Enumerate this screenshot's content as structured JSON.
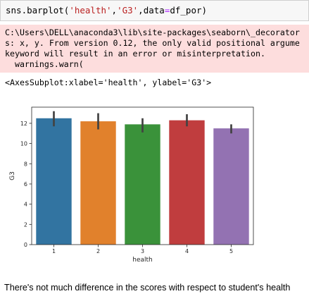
{
  "code_cell": {
    "parts": {
      "fn": "sns.barplot(",
      "arg1": "'health'",
      "sep1": ",",
      "arg2": "'G3'",
      "sep2": ",",
      "kw": "data",
      "eq": "=",
      "val": "df_por)"
    }
  },
  "stderr": {
    "lines": [
      "C:\\Users\\DELL\\anaconda3\\lib\\site-packages\\seaborn\\_decorator",
      "s: x, y. From version 0.12, the only valid positional argume",
      "keyword will result in an error or misinterpretation.",
      "  warnings.warn("
    ],
    "color": "#fddddd"
  },
  "output_repr": "<AxesSubplot:xlabel='health', ylabel='G3'>",
  "chart_data": {
    "type": "bar",
    "categories": [
      "1",
      "2",
      "3",
      "4",
      "5"
    ],
    "values": [
      12.5,
      12.2,
      11.9,
      12.3,
      11.5
    ],
    "error": [
      [
        11.7,
        13.2
      ],
      [
        11.4,
        13.0
      ],
      [
        11.1,
        12.5
      ],
      [
        11.7,
        12.9
      ],
      [
        11.0,
        11.9
      ]
    ],
    "colors": [
      "#3274a1",
      "#e1812c",
      "#3a923a",
      "#c03d3e",
      "#9372b2"
    ],
    "xlabel": "health",
    "ylabel": "G3",
    "ylim": [
      0,
      13.6
    ],
    "yticks": [
      0,
      2,
      4,
      6,
      8,
      10,
      12
    ],
    "grid": false
  },
  "markdown": {
    "text": "There's not much difference in the scores with respect to student's health"
  }
}
